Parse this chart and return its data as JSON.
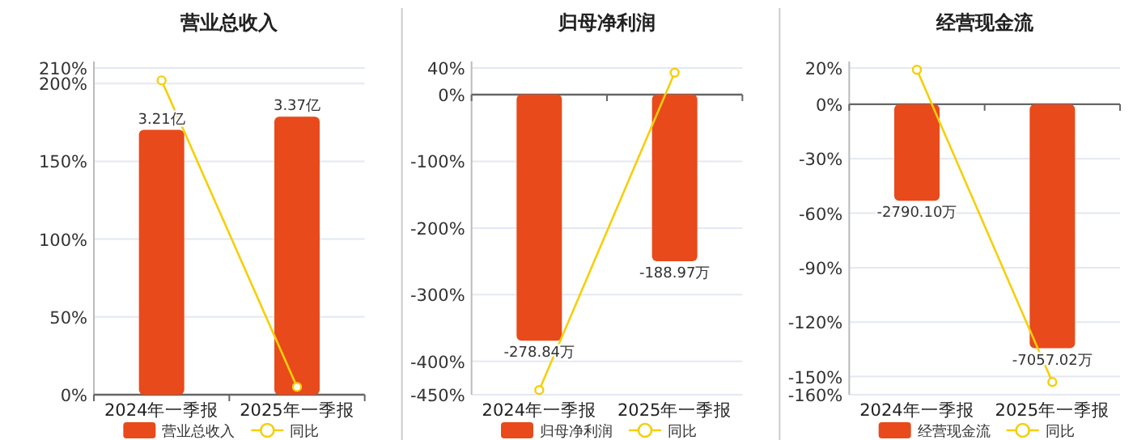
{
  "chart_data": [
    {
      "type": "bar",
      "title": "营业总收入",
      "categories": [
        "2024年一季报",
        "2025年一季报"
      ],
      "ylim": [
        0,
        210
      ],
      "yticks": [
        {
          "value": 0,
          "label": "0%"
        },
        {
          "value": 50,
          "label": "50%"
        },
        {
          "value": 100,
          "label": "100%"
        },
        {
          "value": 150,
          "label": "150%"
        },
        {
          "value": 200,
          "label": "200%"
        },
        {
          "value": 210,
          "label": "210%"
        }
      ],
      "y2lim": [
        0,
        3.96
      ],
      "grid": "y",
      "legend": "bottom",
      "marker": "circle",
      "series": [
        {
          "name": "营业总收入",
          "color": "#e84a1b",
          "axis": "y2",
          "values": [
            3.21,
            3.37
          ],
          "value_labels": [
            "3.21亿",
            "3.37亿"
          ]
        },
        {
          "type": "line",
          "name": "同比",
          "color": "#f5cf0a",
          "values": [
            202,
            5
          ]
        }
      ]
    },
    {
      "type": "bar",
      "title": "归母净利润",
      "categories": [
        "2024年一季报",
        "2025年一季报"
      ],
      "ylim": [
        -450,
        40
      ],
      "yticks": [
        {
          "value": 40,
          "label": "40%"
        },
        {
          "value": 0,
          "label": "0%"
        },
        {
          "value": -100,
          "label": "-100%"
        },
        {
          "value": -200,
          "label": "-200%"
        },
        {
          "value": -300,
          "label": "-300%"
        },
        {
          "value": -400,
          "label": "-400%"
        },
        {
          "value": -450,
          "label": "-450%"
        }
      ],
      "y2lim": [
        -340,
        30
      ],
      "grid": "y",
      "legend": "bottom",
      "marker": "circle",
      "series": [
        {
          "name": "归母净利润",
          "color": "#e84a1b",
          "axis": "y2",
          "values": [
            -278.84,
            -188.97
          ],
          "value_labels": [
            "-278.84万",
            "-188.97万"
          ]
        },
        {
          "type": "line",
          "name": "同比",
          "color": "#f5cf0a",
          "values": [
            -443,
            33
          ]
        }
      ]
    },
    {
      "type": "bar",
      "title": "经营现金流",
      "categories": [
        "2024年一季报",
        "2025年一季报"
      ],
      "ylim": [
        -160,
        20
      ],
      "yticks": [
        {
          "value": 20,
          "label": "20%"
        },
        {
          "value": 0,
          "label": "0%"
        },
        {
          "value": -30,
          "label": "-30%"
        },
        {
          "value": -60,
          "label": "-60%"
        },
        {
          "value": -90,
          "label": "-90%"
        },
        {
          "value": -120,
          "label": "-120%"
        },
        {
          "value": -150,
          "label": "-150%"
        },
        {
          "value": -160,
          "label": "-160%"
        }
      ],
      "y2lim": [
        -8400,
        1050
      ],
      "grid": "y",
      "legend": "bottom",
      "marker": "circle",
      "series": [
        {
          "name": "经营现金流",
          "color": "#e84a1b",
          "axis": "y2",
          "values": [
            -2790.1,
            -7057.02
          ],
          "value_labels": [
            "-2790.10万",
            "-7057.02万"
          ]
        },
        {
          "type": "line",
          "name": "同比",
          "color": "#f5cf0a",
          "values": [
            19,
            -153
          ]
        }
      ]
    }
  ]
}
